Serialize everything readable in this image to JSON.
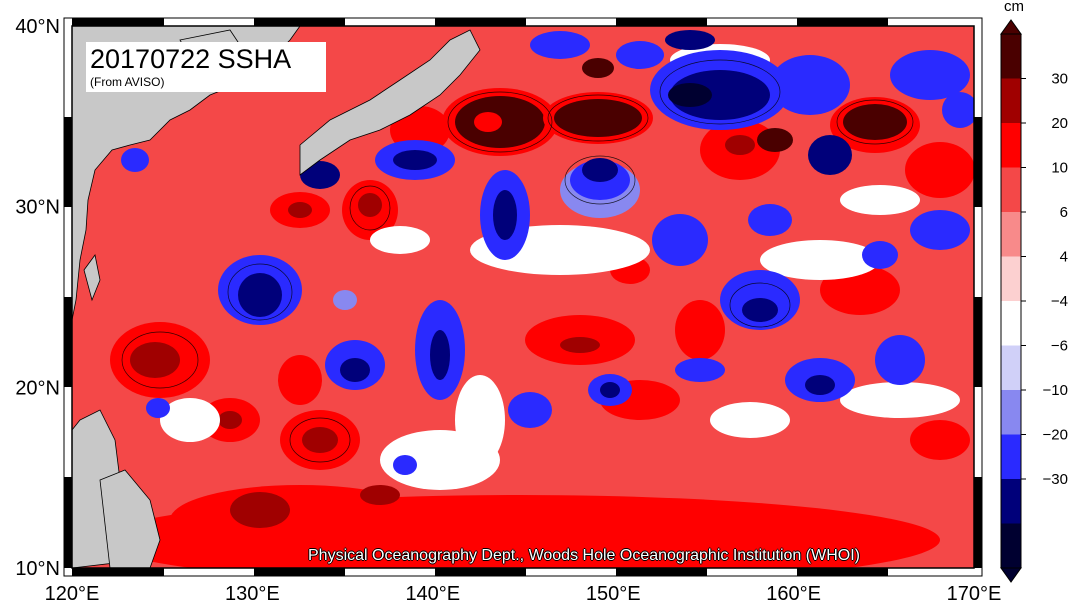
{
  "title": "20170722 SSHA",
  "subtitle": "(From AVISO)",
  "credit": "Physical Oceanography Dept., Woods Hole Oceanographic Institution (WHOI)",
  "colorbar": {
    "unit": "cm",
    "labels": [
      "30",
      "20",
      "10",
      "6",
      "4",
      "−4",
      "−6",
      "−10",
      "−20",
      "−30"
    ],
    "levels": [
      {
        "color": "#4a0000"
      },
      {
        "color": "#a00000"
      },
      {
        "color": "#ff0000"
      },
      {
        "color": "#f44848"
      },
      {
        "color": "#f88a8a"
      },
      {
        "color": "#fcd0d0"
      },
      {
        "color": "#ffffff"
      },
      {
        "color": "#d0d0f8"
      },
      {
        "color": "#8888f0"
      },
      {
        "color": "#2a2aff"
      },
      {
        "color": "#00007a"
      },
      {
        "color": "#000030"
      }
    ]
  },
  "axes": {
    "x_ticks": [
      "120°E",
      "130°E",
      "140°E",
      "150°E",
      "160°E",
      "170°E"
    ],
    "y_ticks": [
      "40°N",
      "30°N",
      "20°N",
      "10°N"
    ],
    "lon_range": [
      120,
      170
    ],
    "lat_range": [
      10,
      40
    ]
  },
  "colors": {
    "background_red": "#f44848",
    "land": "#c8c8c8"
  }
}
